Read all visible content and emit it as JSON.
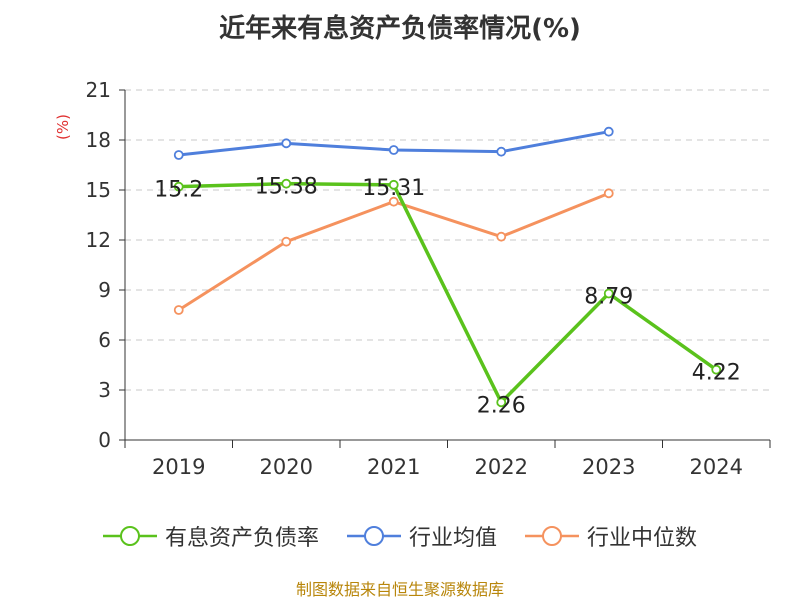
{
  "chart_data": {
    "type": "line",
    "title": "近年来有息资产负债率情况(%)",
    "ylabel": "(%)",
    "categories": [
      "2019",
      "2020",
      "2021",
      "2022",
      "2023",
      "2024"
    ],
    "ylim": [
      0,
      21
    ],
    "yticks": [
      0,
      3,
      6,
      9,
      12,
      15,
      18,
      21
    ],
    "grid": true,
    "legend_position": "bottom",
    "series": [
      {
        "name": "有息资产负债率",
        "color": "#5ac21c",
        "values": [
          15.2,
          15.38,
          15.31,
          2.26,
          8.79,
          4.22
        ],
        "labels": [
          "15.2",
          "15.38",
          "15.31",
          "2.26",
          "8.79",
          "4.22"
        ]
      },
      {
        "name": "行业均值",
        "color": "#4f7fdc",
        "values": [
          17.1,
          17.8,
          17.4,
          17.3,
          18.5,
          null
        ]
      },
      {
        "name": "行业中位数",
        "color": "#f5925e",
        "values": [
          7.8,
          11.9,
          14.3,
          12.2,
          14.8,
          null
        ]
      }
    ]
  },
  "source": "制图数据来自恒生聚源数据库"
}
